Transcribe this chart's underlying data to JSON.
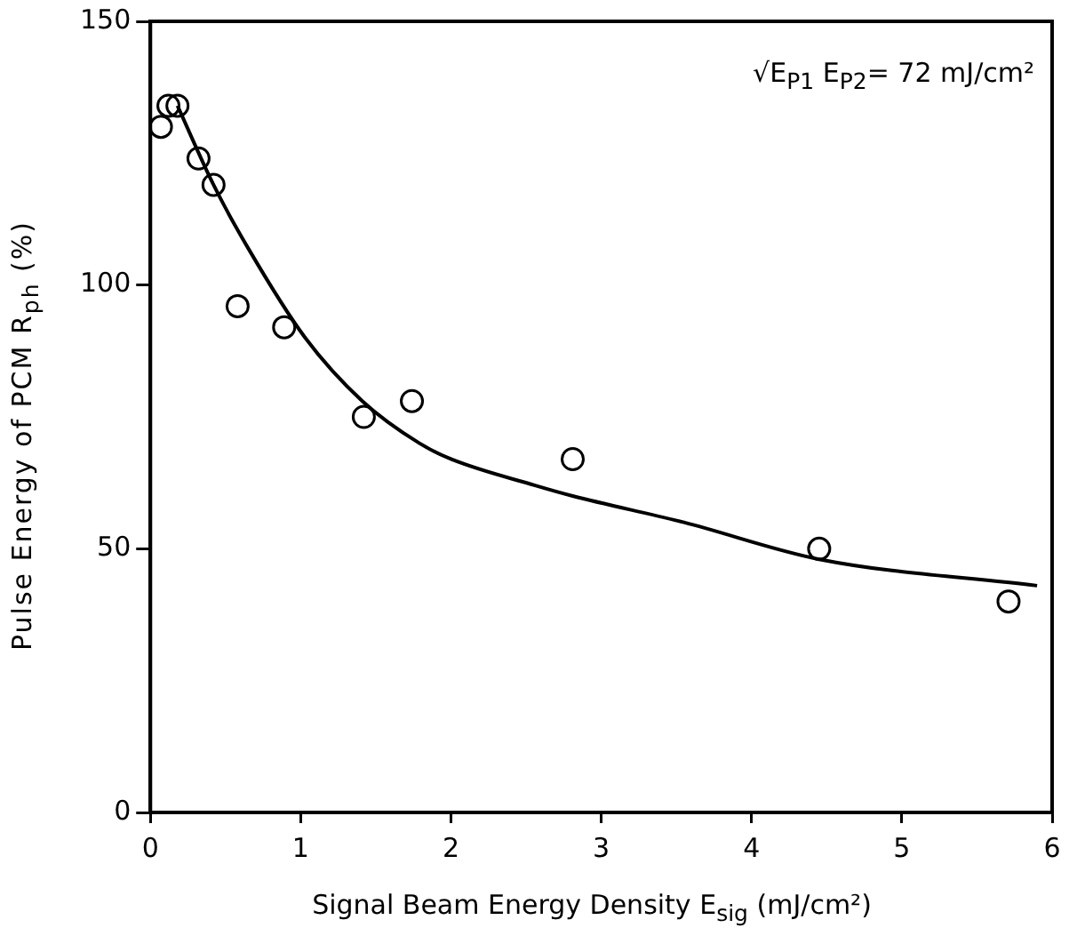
{
  "chart_data": {
    "type": "scatter",
    "xlabel": "Signal Beam Energy Density E$_{sig}$ (mJ/cm²)",
    "ylabel": "Pulse Energy of PCM R$_{ph}$ (%)",
    "annotations": [
      "√E$_{P1}$ E$_{P2}$= 72 mJ/cm²"
    ],
    "xlim": [
      0,
      6
    ],
    "xticks": [
      0,
      1,
      2,
      3,
      4,
      5,
      6
    ],
    "ylim": [
      0,
      150
    ],
    "yticks": [
      0,
      50,
      100,
      150
    ],
    "grid": false,
    "legend": false,
    "marker": "circle",
    "series": [
      {
        "type": "scatter",
        "color": "#000000",
        "x": [
          0.07,
          0.12,
          0.18,
          0.32,
          0.42,
          0.58,
          0.89,
          1.42,
          1.74,
          2.81,
          4.45,
          5.71
        ],
        "values": [
          130,
          134,
          134,
          124,
          119,
          96,
          92,
          75,
          78,
          67,
          50,
          40
        ]
      },
      {
        "type": "line",
        "color": "#000000",
        "marker": "none",
        "line_style": "solid",
        "x": [
          0.18,
          0.42,
          0.65,
          1.03,
          1.41,
          1.79,
          2.0,
          2.56,
          2.81,
          3.55,
          4.45,
          5.9
        ],
        "values": [
          134,
          119,
          107,
          90,
          78,
          70,
          67,
          62,
          60,
          55,
          48,
          43
        ]
      }
    ]
  }
}
